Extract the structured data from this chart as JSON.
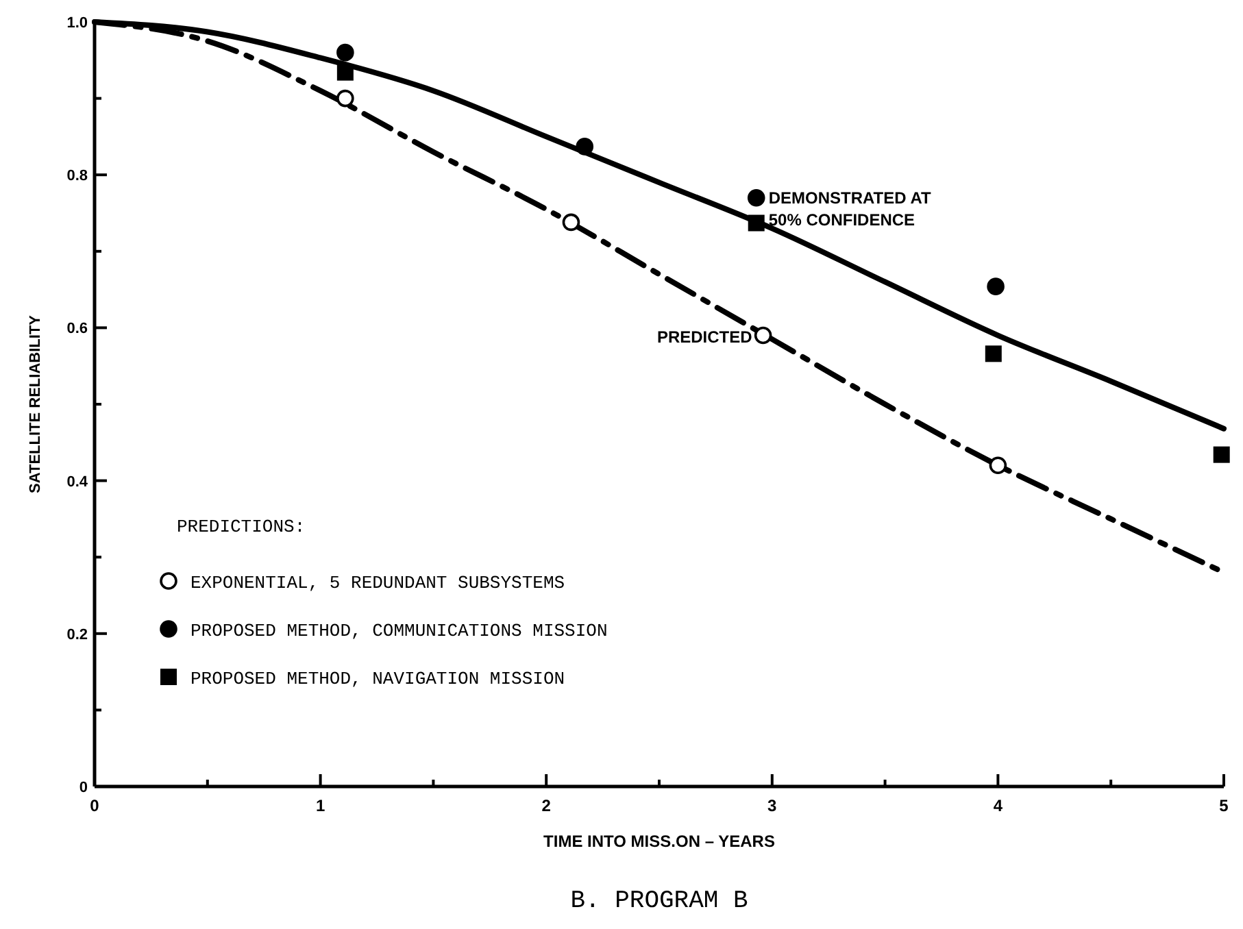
{
  "chart_data": {
    "type": "scatter",
    "title": "B.   PROGRAM B",
    "xlabel": "TIME INTO MISS.ON – YEARS",
    "ylabel": "SATELLITE RELIABILITY",
    "legend_title": "PREDICTIONS:",
    "legend": "bottom left",
    "grid": false,
    "xlim": [
      0,
      5
    ],
    "ylim": [
      0,
      1
    ],
    "xticks": [
      0,
      {
        "value": 0.5,
        "label": null
      },
      1,
      {
        "value": 1.5,
        "label": null
      },
      2,
      {
        "value": 2.5,
        "label": null
      },
      3,
      {
        "value": 3.5,
        "label": null
      },
      4,
      {
        "value": 4.5,
        "label": null
      },
      5
    ],
    "yticks": [
      0,
      {
        "value": 0.1,
        "label": null
      },
      0.2,
      {
        "value": 0.3,
        "label": null
      },
      0.4,
      {
        "value": 0.5,
        "label": null
      },
      0.6,
      {
        "value": 0.7,
        "label": null
      },
      0.8,
      {
        "value": 0.9,
        "label": null
      },
      {
        "value": 1,
        "label": "1.0"
      }
    ],
    "series": [
      {
        "type": "line",
        "color": "#000000",
        "line_style": "solid",
        "marker": "none",
        "x": [
          0,
          0.5,
          1,
          1.5,
          2,
          2.5,
          3,
          3.5,
          4,
          4.5,
          5
        ],
        "values": [
          1,
          0.987,
          0.953,
          0.91,
          0.85,
          0.79,
          0.73,
          0.66,
          0.59,
          0.53,
          0.468
        ]
      },
      {
        "type": "line",
        "color": "#000000",
        "line_style": "dashed",
        "marker": "none",
        "x": [
          0,
          0.5,
          1,
          1.5,
          2,
          2.5,
          3,
          3.5,
          4,
          4.5,
          5
        ],
        "values": [
          1,
          0.975,
          0.91,
          0.83,
          0.755,
          0.67,
          0.585,
          0.5,
          0.42,
          0.35,
          0.28
        ]
      },
      {
        "name": "EXPONENTIAL, 5 REDUNDANT SUBSYSTEMS",
        "color": "#ffffff",
        "marker": "circle",
        "x": [
          1.11,
          2.11,
          2.96,
          4.0
        ],
        "values": [
          0.9,
          0.738,
          0.59,
          0.42
        ]
      },
      {
        "name": "PROPOSED METHOD, COMMUNICATIONS MISSION",
        "color": "#000000",
        "marker": "circle",
        "x": [
          1.11,
          2.17,
          2.93,
          3.99
        ],
        "values": [
          0.96,
          0.837,
          0.77,
          0.654
        ]
      },
      {
        "name": "PROPOSED METHOD, NAVIGATION MISSION",
        "color": "#000000",
        "marker": "square",
        "x": [
          1.11,
          2.93,
          3.98,
          4.99
        ],
        "values": [
          0.934,
          0.737,
          0.566,
          0.434
        ]
      }
    ],
    "annotations": [
      {
        "text": "DEMONSTRATED AT\n50% CONFIDENCE",
        "x": 2.93,
        "y": 0.77
      },
      {
        "text": "PREDICTED",
        "x": 2.96,
        "y": 0.59
      }
    ]
  }
}
